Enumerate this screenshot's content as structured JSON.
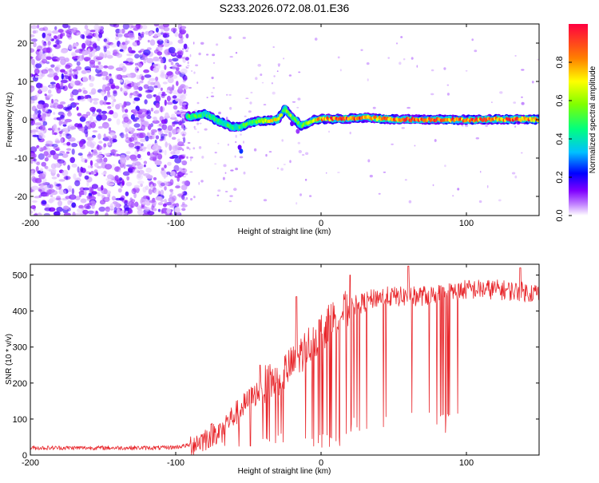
{
  "page_title": "S233.2026.072.08.01.E36",
  "chart_data": [
    {
      "type": "heatmap",
      "title": "S233.2026.072.08.01.E36",
      "xlabel": "Height of straight line (km)",
      "ylabel": "Frequency (Hz)",
      "xlim": [
        -200,
        150
      ],
      "ylim": [
        -25,
        25
      ],
      "x_ticks": [
        -200,
        -100,
        0,
        100
      ],
      "y_ticks": [
        -20,
        -10,
        0,
        10,
        20
      ],
      "colorbar": {
        "label": "Normalized spectral amplitude",
        "range": [
          0.0,
          1.0
        ],
        "ticks": [
          "0.0",
          "0.2",
          "0.4",
          "0.6",
          "0.8"
        ],
        "colors": [
          "#ffffff",
          "#c080ff",
          "#8000ff",
          "#0000ff",
          "#00c0ff",
          "#00ff80",
          "#80ff00",
          "#ffff00",
          "#ff8000",
          "#ff0040"
        ]
      },
      "noise_region": {
        "x_range": [
          -200,
          -92
        ],
        "freq_range": [
          -25,
          25
        ],
        "amplitude_range": [
          0.0,
          0.2
        ]
      },
      "signal_track": [
        {
          "x": -92,
          "f": 0.8,
          "a": 0.55
        },
        {
          "x": -85,
          "f": 1.0,
          "a": 0.5
        },
        {
          "x": -80,
          "f": 1.5,
          "a": 0.45
        },
        {
          "x": -75,
          "f": 0.5,
          "a": 0.5
        },
        {
          "x": -70,
          "f": -0.5,
          "a": 0.45
        },
        {
          "x": -65,
          "f": -1.2,
          "a": 0.5
        },
        {
          "x": -60,
          "f": -2.0,
          "a": 0.45
        },
        {
          "x": -55,
          "f": -1.8,
          "a": 0.5
        },
        {
          "x": -50,
          "f": -1.0,
          "a": 0.55
        },
        {
          "x": -45,
          "f": -0.5,
          "a": 0.6
        },
        {
          "x": -40,
          "f": -0.3,
          "a": 0.65
        },
        {
          "x": -35,
          "f": -0.2,
          "a": 0.7
        },
        {
          "x": -30,
          "f": 0.0,
          "a": 0.75
        },
        {
          "x": -27,
          "f": 1.5,
          "a": 0.6
        },
        {
          "x": -25,
          "f": 3.0,
          "a": 0.55
        },
        {
          "x": -22,
          "f": 1.5,
          "a": 0.6
        },
        {
          "x": -18,
          "f": 0.0,
          "a": 0.6
        },
        {
          "x": -14,
          "f": -1.5,
          "a": 0.55
        },
        {
          "x": -10,
          "f": -1.0,
          "a": 0.6
        },
        {
          "x": -5,
          "f": 0.0,
          "a": 0.7
        },
        {
          "x": 0,
          "f": 0.2,
          "a": 0.85
        },
        {
          "x": 10,
          "f": 0.2,
          "a": 0.95
        },
        {
          "x": 20,
          "f": 0.3,
          "a": 0.95
        },
        {
          "x": 30,
          "f": 0.6,
          "a": 0.9
        },
        {
          "x": 40,
          "f": 0.3,
          "a": 0.85
        },
        {
          "x": 50,
          "f": 0.1,
          "a": 0.9
        },
        {
          "x": 60,
          "f": 0.1,
          "a": 0.95
        },
        {
          "x": 70,
          "f": 0.0,
          "a": 0.9
        },
        {
          "x": 80,
          "f": 0.1,
          "a": 0.95
        },
        {
          "x": 90,
          "f": 0.0,
          "a": 0.9
        },
        {
          "x": 100,
          "f": 0.0,
          "a": 0.92
        },
        {
          "x": 110,
          "f": 0.0,
          "a": 0.9
        },
        {
          "x": 120,
          "f": 0.2,
          "a": 0.85
        },
        {
          "x": 130,
          "f": 0.1,
          "a": 0.95
        },
        {
          "x": 140,
          "f": 0.2,
          "a": 0.85
        },
        {
          "x": 150,
          "f": 0.0,
          "a": 0.9
        }
      ]
    },
    {
      "type": "line",
      "xlabel": "Height of straight line (km)",
      "ylabel": "SNR (10 * v/v)",
      "xlim": [
        -200,
        150
      ],
      "ylim": [
        0,
        530
      ],
      "x_ticks": [
        -200,
        -100,
        0,
        100
      ],
      "y_ticks": [
        0,
        100,
        200,
        300,
        400,
        500
      ],
      "series": [
        {
          "name": "SNR",
          "color": "#e8262b",
          "baseline_points": [
            {
              "x": -200,
              "y": 20
            },
            {
              "x": -150,
              "y": 20
            },
            {
              "x": -110,
              "y": 20
            },
            {
              "x": -100,
              "y": 22
            },
            {
              "x": -90,
              "y": 28
            },
            {
              "x": -80,
              "y": 45
            },
            {
              "x": -70,
              "y": 70
            },
            {
              "x": -60,
              "y": 110
            },
            {
              "x": -50,
              "y": 150
            },
            {
              "x": -40,
              "y": 190
            },
            {
              "x": -30,
              "y": 215
            },
            {
              "x": -20,
              "y": 250
            },
            {
              "x": -10,
              "y": 300
            },
            {
              "x": 0,
              "y": 340
            },
            {
              "x": 10,
              "y": 385
            },
            {
              "x": 20,
              "y": 410
            },
            {
              "x": 30,
              "y": 425
            },
            {
              "x": 40,
              "y": 440
            },
            {
              "x": 60,
              "y": 440
            },
            {
              "x": 80,
              "y": 445
            },
            {
              "x": 100,
              "y": 460
            },
            {
              "x": 120,
              "y": 460
            },
            {
              "x": 150,
              "y": 450
            }
          ],
          "notable_peaks": [
            {
              "x": -17,
              "y": 440
            },
            {
              "x": 20,
              "y": 500
            },
            {
              "x": 60,
              "y": 525
            },
            {
              "x": 137,
              "y": 520
            },
            {
              "x": -42,
              "y": 250
            }
          ],
          "notable_dropouts_range": {
            "x": [
              20,
              95
            ],
            "min_y": 60
          }
        }
      ]
    }
  ]
}
